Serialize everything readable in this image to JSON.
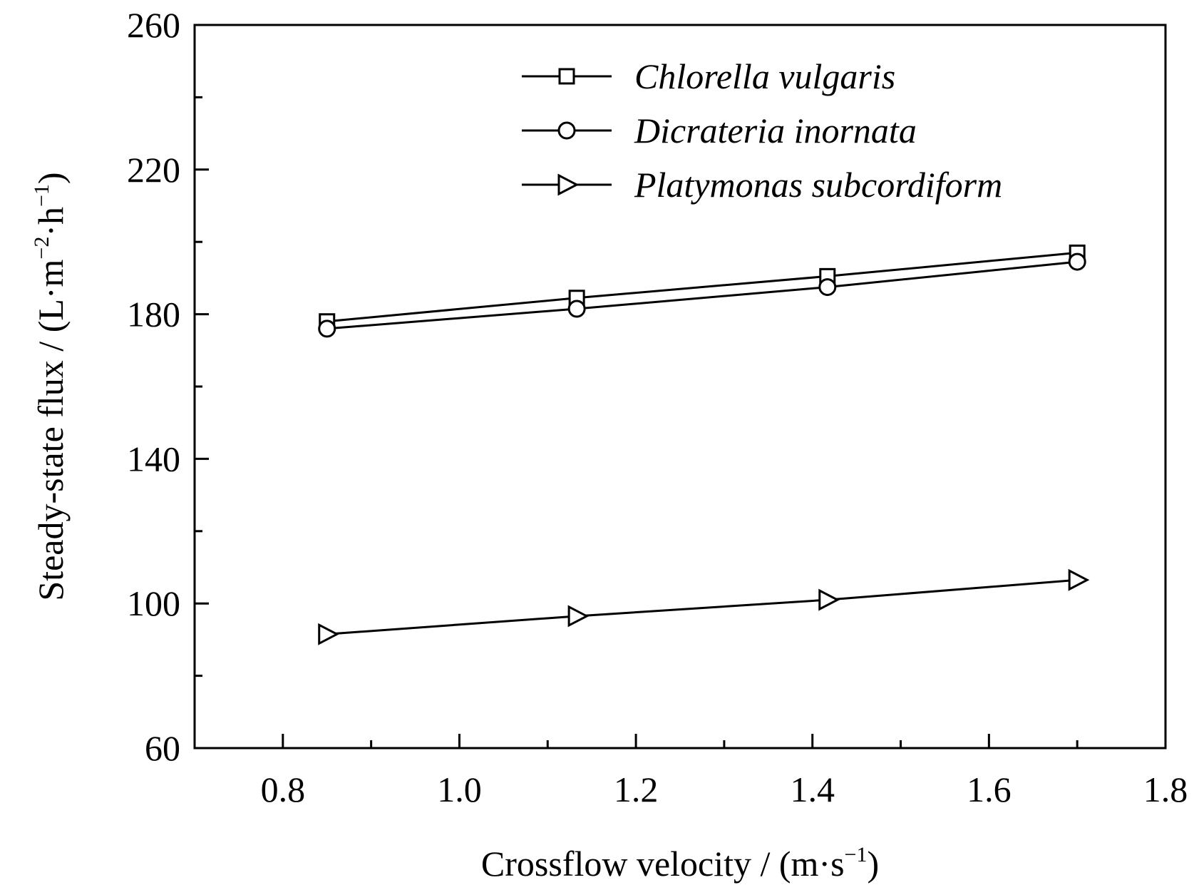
{
  "chart_data": {
    "type": "line",
    "xlabel": {
      "main": "Crossflow velocity / (m·s",
      "sup": "−1",
      "close": ")"
    },
    "ylabel": {
      "main": "Steady-state flux / (L·m",
      "sup1": "−2",
      "mid": "·h",
      "sup2": "−1",
      "close": ")"
    },
    "xlim": [
      0.7,
      1.8
    ],
    "ylim": [
      60,
      260
    ],
    "xticks": [
      0.8,
      1.0,
      1.2,
      1.4,
      1.6,
      1.8
    ],
    "xtick_labels": [
      "0.8",
      "1.0",
      "1.2",
      "1.4",
      "1.6",
      "1.8"
    ],
    "xminor": [
      0.9,
      1.1,
      1.3,
      1.5,
      1.7
    ],
    "yticks": [
      60,
      100,
      140,
      180,
      220,
      260
    ],
    "ytick_labels": [
      "60",
      "100",
      "140",
      "180",
      "220",
      "260"
    ],
    "yminor": [
      80,
      120,
      160,
      200,
      240
    ],
    "x": [
      0.85,
      1.133,
      1.417,
      1.7
    ],
    "series": [
      {
        "name": "Chlorella vulgaris",
        "marker": "square",
        "values": [
          178,
          184.5,
          190.5,
          197
        ]
      },
      {
        "name": "Dicrateria inornata",
        "marker": "circle",
        "values": [
          176,
          181.5,
          187.5,
          194.5
        ]
      },
      {
        "name": "Platymonas subcordiform",
        "marker": "triangle-right",
        "values": [
          91.5,
          96.5,
          101,
          106.5
        ]
      }
    ],
    "legend_position": "top-right",
    "grid": false,
    "colors": {
      "line": "#000000",
      "marker_fill": "#ffffff",
      "background": "#ffffff"
    }
  }
}
